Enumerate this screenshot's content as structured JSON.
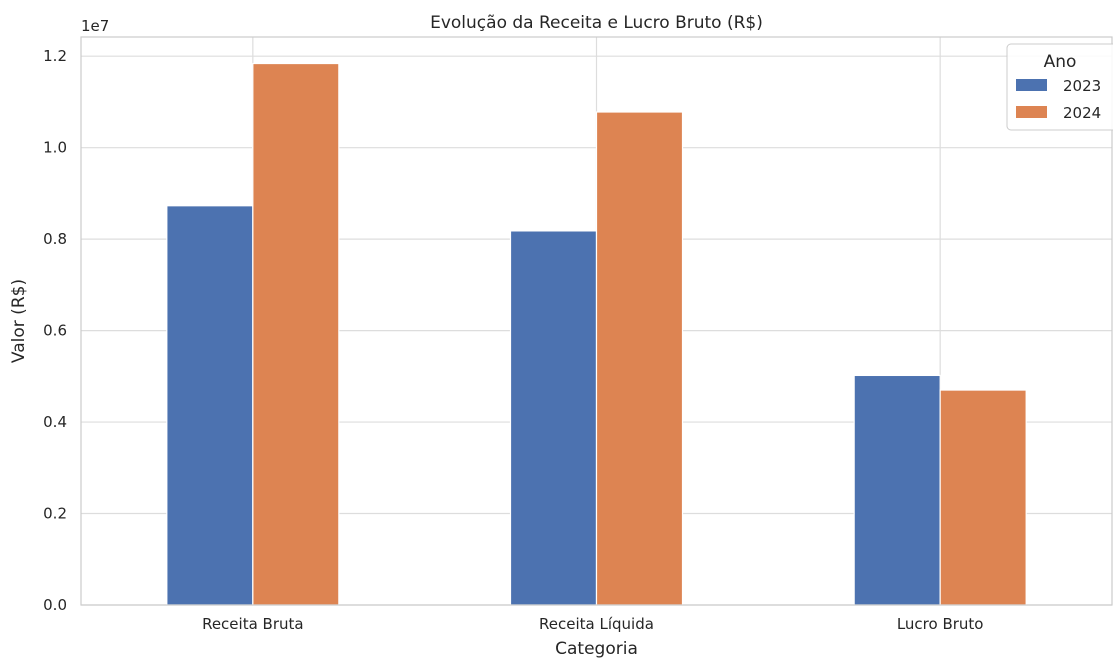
{
  "chart_data": {
    "type": "bar",
    "title": "Evolução da Receita e Lucro Bruto (R$)",
    "xlabel": "Categoria",
    "ylabel": "Valor (R$)",
    "y_offset_label": "1e7",
    "categories": [
      "Receita Bruta",
      "Receita Líquida",
      "Lucro Bruto"
    ],
    "series": [
      {
        "name": "2023",
        "color": "#4c72b0",
        "values": [
          8730000,
          8180000,
          5020000
        ]
      },
      {
        "name": "2024",
        "color": "#dd8452",
        "values": [
          11840000,
          10780000,
          4700000
        ]
      }
    ],
    "ylim": [
      0,
      12420000
    ],
    "yticks": [
      0,
      2000000,
      4000000,
      6000000,
      8000000,
      10000000,
      12000000
    ],
    "ytick_labels": [
      "0.0",
      "0.2",
      "0.4",
      "0.6",
      "0.8",
      "1.0",
      "1.2"
    ],
    "grid": true,
    "legend": {
      "title": "Ano",
      "placement": "top-right"
    }
  }
}
